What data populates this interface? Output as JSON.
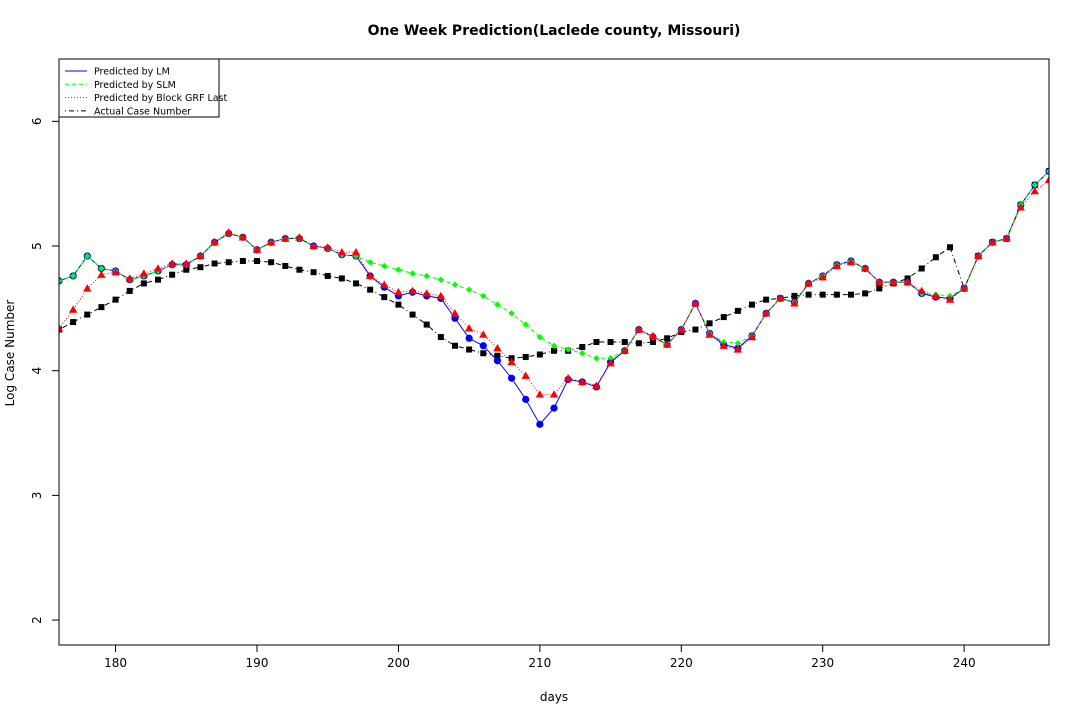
{
  "chart_data": {
    "type": "line",
    "title": "One Week Prediction(Laclede county, Missouri)",
    "xlabel": "days",
    "ylabel": "Log Case Number",
    "xlim": [
      176,
      246
    ],
    "ylim": [
      1.8,
      6.5
    ],
    "xticks": [
      180,
      190,
      200,
      210,
      220,
      230,
      240
    ],
    "yticks": [
      2,
      3,
      4,
      5,
      6
    ],
    "grid": false,
    "legend_position": "top-left",
    "x": [
      176,
      177,
      178,
      179,
      180,
      181,
      182,
      183,
      184,
      185,
      186,
      187,
      188,
      189,
      190,
      191,
      192,
      193,
      194,
      195,
      196,
      197,
      198,
      199,
      200,
      201,
      202,
      203,
      204,
      205,
      206,
      207,
      208,
      209,
      210,
      211,
      212,
      213,
      214,
      215,
      216,
      217,
      218,
      219,
      220,
      221,
      222,
      223,
      224,
      225,
      226,
      227,
      228,
      229,
      230,
      231,
      232,
      233,
      234,
      235,
      236,
      237,
      238,
      239,
      240,
      241,
      242,
      243,
      244,
      245,
      246
    ],
    "series": [
      {
        "name": "Predicted by LM",
        "color": "#0000ff",
        "line_style": "solid",
        "marker": "circle",
        "values": [
          4.72,
          4.76,
          4.92,
          4.82,
          4.8,
          4.73,
          4.76,
          4.8,
          4.85,
          4.85,
          4.92,
          5.03,
          5.1,
          5.07,
          4.97,
          5.03,
          5.06,
          5.06,
          5.0,
          4.98,
          4.93,
          4.92,
          4.76,
          4.67,
          4.6,
          4.63,
          4.6,
          4.58,
          4.42,
          4.26,
          4.2,
          4.08,
          3.94,
          3.77,
          3.57,
          3.7,
          3.93,
          3.91,
          3.87,
          4.07,
          4.16,
          4.33,
          4.27,
          4.21,
          4.33,
          4.54,
          4.3,
          4.21,
          4.18,
          4.28,
          4.46,
          4.58,
          4.55,
          4.7,
          4.76,
          4.85,
          4.88,
          4.82,
          4.71,
          4.71,
          4.71,
          4.62,
          4.59,
          4.58,
          4.66,
          4.92,
          5.03,
          5.06,
          5.33,
          5.49,
          5.6
        ]
      },
      {
        "name": "Predicted by SLM",
        "color": "#00ff00",
        "line_style": "dashed",
        "marker": "diamond",
        "values": [
          4.72,
          4.76,
          4.92,
          4.82,
          4.8,
          4.73,
          4.76,
          4.8,
          4.85,
          4.85,
          4.92,
          5.03,
          5.1,
          5.07,
          4.97,
          5.03,
          5.06,
          5.06,
          5.0,
          4.98,
          4.93,
          4.92,
          4.87,
          4.84,
          4.81,
          4.78,
          4.76,
          4.73,
          4.69,
          4.65,
          4.6,
          4.53,
          4.46,
          4.37,
          4.27,
          4.2,
          4.17,
          4.14,
          4.1,
          4.1,
          4.16,
          4.33,
          4.27,
          4.21,
          4.33,
          4.54,
          4.3,
          4.23,
          4.22,
          4.28,
          4.46,
          4.58,
          4.55,
          4.7,
          4.76,
          4.85,
          4.88,
          4.82,
          4.71,
          4.71,
          4.71,
          4.62,
          4.61,
          4.6,
          4.66,
          4.92,
          5.03,
          5.06,
          5.33,
          5.49,
          5.6
        ]
      },
      {
        "name": "Predicted by Block GRF Last",
        "color": "#ff0000",
        "line_style": "dotted",
        "marker": "triangle",
        "values": [
          4.34,
          4.49,
          4.66,
          4.77,
          4.79,
          4.74,
          4.78,
          4.82,
          4.86,
          4.86,
          4.92,
          5.03,
          5.11,
          5.07,
          4.97,
          5.03,
          5.06,
          5.07,
          5.0,
          4.99,
          4.95,
          4.95,
          4.76,
          4.69,
          4.63,
          4.64,
          4.62,
          4.6,
          4.46,
          4.34,
          4.29,
          4.18,
          4.07,
          3.96,
          3.81,
          3.81,
          3.94,
          3.91,
          3.88,
          4.06,
          4.16,
          4.33,
          4.28,
          4.21,
          4.33,
          4.54,
          4.29,
          4.2,
          4.17,
          4.27,
          4.46,
          4.58,
          4.54,
          4.7,
          4.75,
          4.84,
          4.87,
          4.82,
          4.71,
          4.71,
          4.71,
          4.64,
          4.6,
          4.57,
          4.66,
          4.92,
          5.03,
          5.06,
          5.31,
          5.44,
          5.53
        ]
      },
      {
        "name": "Actual Case Number",
        "color": "#000000",
        "line_style": "dotdash",
        "marker": "square",
        "values": [
          4.33,
          4.39,
          4.45,
          4.51,
          4.57,
          4.64,
          4.7,
          4.73,
          4.77,
          4.81,
          4.83,
          4.86,
          4.87,
          4.88,
          4.88,
          4.87,
          4.84,
          4.81,
          4.79,
          4.76,
          4.74,
          4.7,
          4.65,
          4.59,
          4.53,
          4.45,
          4.37,
          4.27,
          4.2,
          4.17,
          4.14,
          4.12,
          4.1,
          4.11,
          4.13,
          4.16,
          4.16,
          4.19,
          4.23,
          4.23,
          4.23,
          4.22,
          4.23,
          4.26,
          4.31,
          4.33,
          4.38,
          4.43,
          4.48,
          4.53,
          4.57,
          4.58,
          4.6,
          4.61,
          4.61,
          4.61,
          4.61,
          4.62,
          4.66,
          4.7,
          4.74,
          4.82,
          4.91,
          4.99,
          4.66,
          4.92,
          5.03,
          5.06,
          5.33,
          5.49,
          5.6
        ]
      }
    ]
  }
}
